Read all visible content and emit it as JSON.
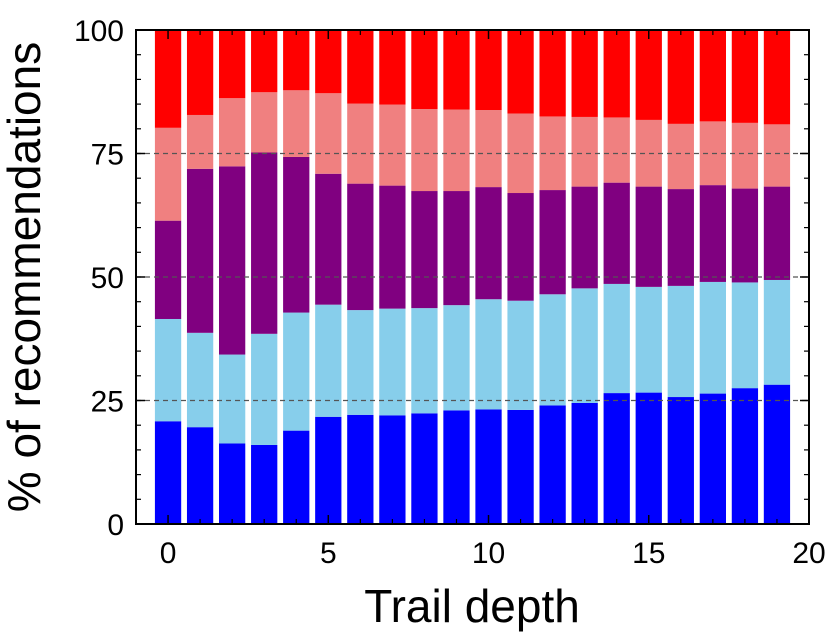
{
  "chart_data": {
    "type": "bar",
    "stacked": true,
    "normalized_percent": true,
    "title": "",
    "xlabel": "Trail depth",
    "ylabel": "% of recommendations",
    "xlim": [
      -1,
      20
    ],
    "ylim": [
      0,
      100
    ],
    "x": [
      0,
      1,
      2,
      3,
      4,
      5,
      6,
      7,
      8,
      9,
      10,
      11,
      12,
      13,
      14,
      15,
      16,
      17,
      18,
      19
    ],
    "x_ticks": [
      0,
      5,
      10,
      15,
      20
    ],
    "y_ticks": [
      0,
      25,
      50,
      75,
      100
    ],
    "grid_y": [
      25,
      50,
      75
    ],
    "legend": "none",
    "series": [
      {
        "name": "blue",
        "color": "#0000ff",
        "values": [
          20.8,
          19.6,
          16.3,
          16.0,
          18.9,
          21.7,
          22.1,
          22.0,
          22.4,
          23.0,
          23.2,
          23.1,
          24.0,
          24.5,
          26.5,
          26.6,
          25.7,
          26.4,
          27.5,
          28.2
        ]
      },
      {
        "name": "skyblue",
        "color": "#87ceeb",
        "values": [
          20.7,
          19.1,
          18.0,
          22.5,
          23.9,
          22.7,
          21.2,
          21.6,
          21.3,
          21.3,
          22.3,
          22.1,
          22.5,
          23.2,
          22.1,
          21.4,
          22.5,
          22.6,
          21.4,
          21.2
        ]
      },
      {
        "name": "purple",
        "color": "#800080",
        "values": [
          19.9,
          33.2,
          38.1,
          36.7,
          31.5,
          26.5,
          25.6,
          24.9,
          23.7,
          23.1,
          22.7,
          21.8,
          21.1,
          20.6,
          20.5,
          20.3,
          19.6,
          19.6,
          19.0,
          18.9
        ]
      },
      {
        "name": "lightcoral",
        "color": "#f08080",
        "values": [
          18.8,
          10.9,
          13.8,
          12.2,
          13.5,
          16.3,
          16.2,
          16.4,
          16.6,
          16.5,
          15.6,
          16.1,
          14.9,
          14.1,
          13.2,
          13.5,
          13.2,
          12.9,
          13.3,
          12.6
        ]
      },
      {
        "name": "red",
        "color": "#ff0000",
        "values": [
          19.8,
          17.2,
          13.8,
          12.6,
          12.2,
          12.8,
          14.9,
          15.1,
          16.0,
          16.1,
          16.2,
          16.9,
          17.5,
          17.6,
          17.7,
          18.2,
          19.0,
          18.5,
          18.8,
          19.1
        ]
      }
    ]
  }
}
